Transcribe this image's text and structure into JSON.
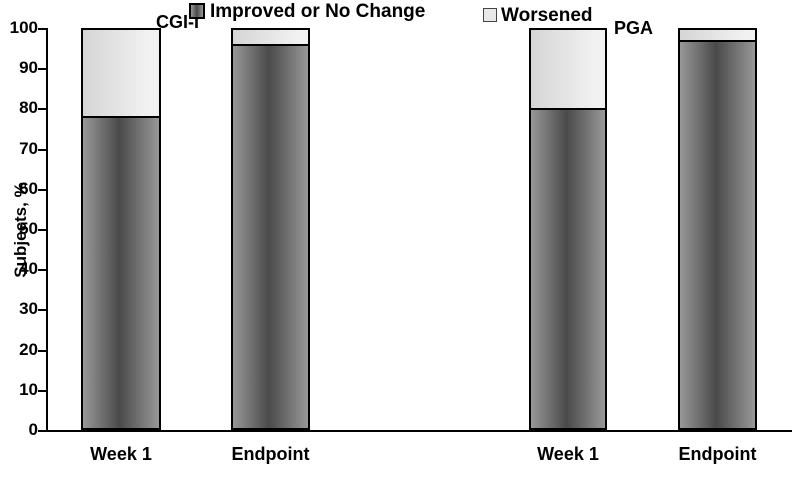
{
  "chart_data": {
    "type": "bar",
    "subtype": "stacked-percentage",
    "title": "",
    "xlabel": "",
    "ylabel": "Subjects, %",
    "ylim": [
      0,
      100
    ],
    "yticks": [
      0,
      10,
      20,
      30,
      40,
      50,
      60,
      70,
      80,
      90,
      100
    ],
    "grid": false,
    "legend_position": "top",
    "legend": [
      {
        "name": "Improved or No Change",
        "swatch": "dark-gradient-square-icon"
      },
      {
        "name": "Worsened",
        "swatch": "light-gray-square-icon"
      }
    ],
    "groups": [
      {
        "label": "CGI-I",
        "bars": [
          {
            "category": "Week 1",
            "values": {
              "improved_or_no_change": 78,
              "worsened": 22
            }
          },
          {
            "category": "Endpoint",
            "values": {
              "improved_or_no_change": 96,
              "worsened": 4
            }
          }
        ]
      },
      {
        "label": "PGA",
        "bars": [
          {
            "category": "Week 1",
            "values": {
              "improved_or_no_change": 80,
              "worsened": 20
            }
          },
          {
            "category": "Endpoint",
            "values": {
              "improved_or_no_change": 97,
              "worsened": 3
            }
          }
        ]
      }
    ],
    "colors": {
      "improved_edge": "#989898",
      "improved_center": "#4a4a4a",
      "worsened_left": "#d5d5d5",
      "worsened_right": "#f1f1f1",
      "worsened_swatch": "#e8e8e8",
      "border": "#000000",
      "background": "#ffffff",
      "text": "#000000"
    }
  }
}
